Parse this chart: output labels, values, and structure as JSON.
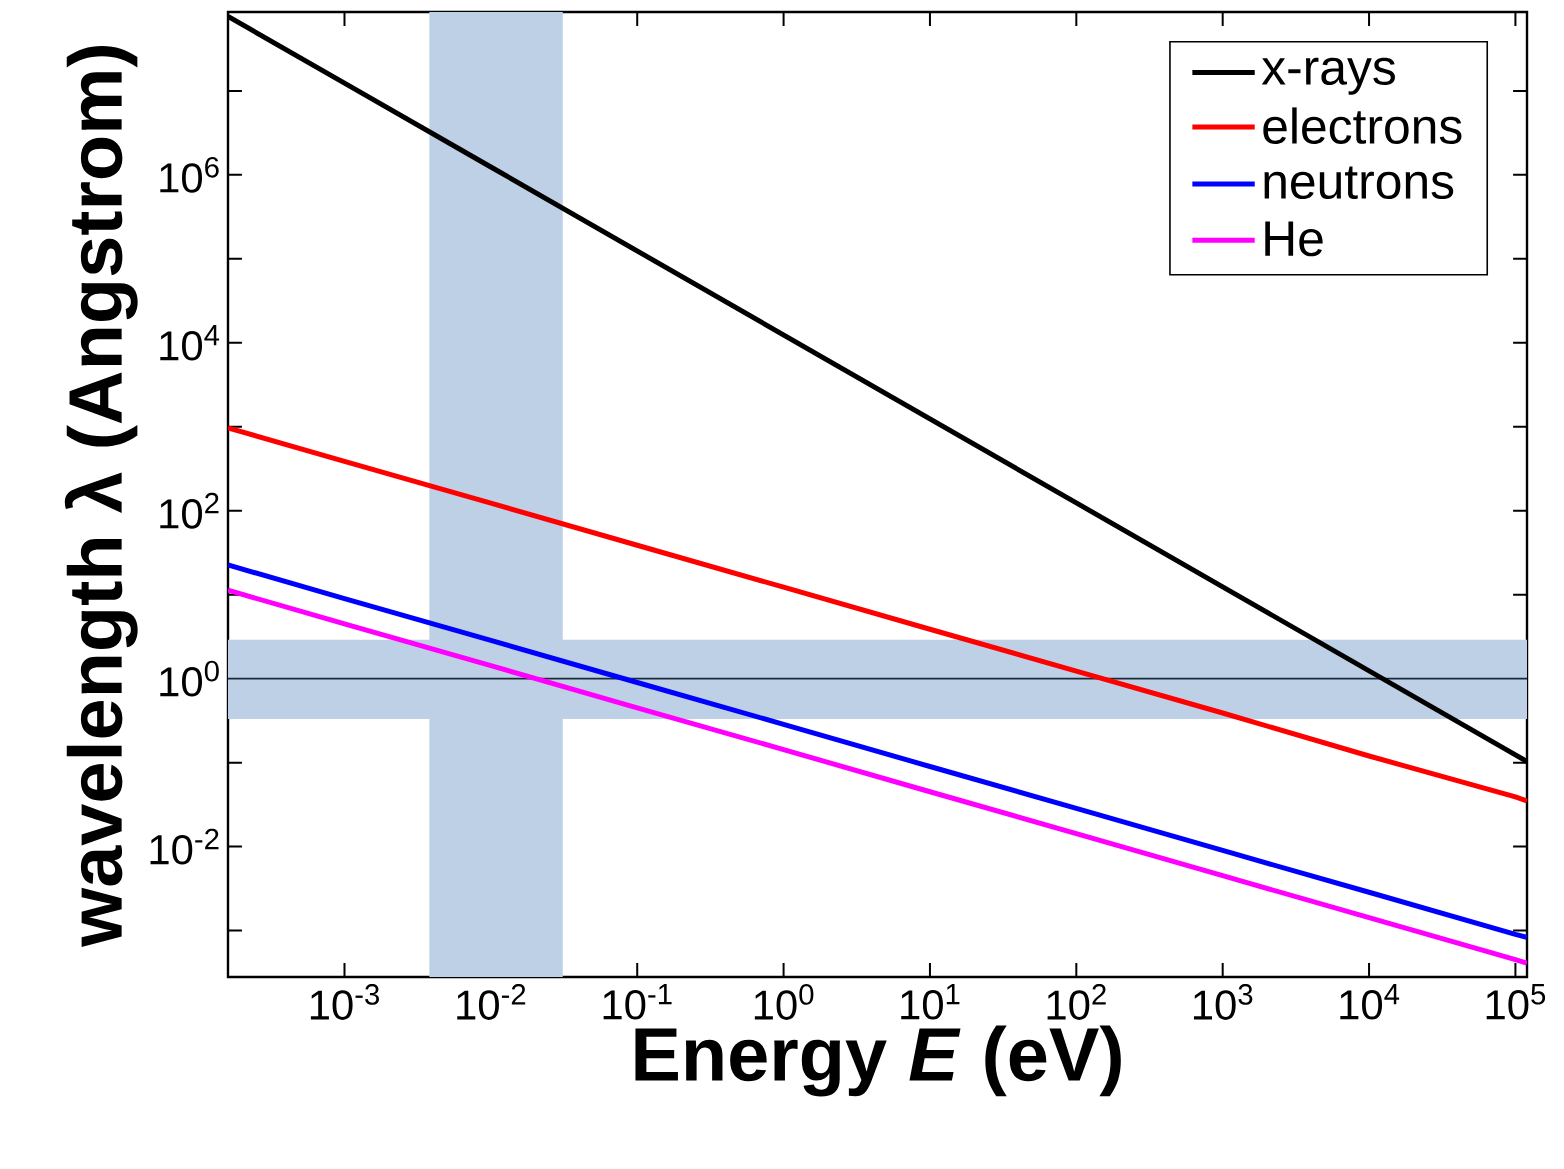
{
  "chart_data": {
    "type": "line",
    "xlabel": "Energy *E* (eV)",
    "ylabel": "wavelength λ (Angstrom)",
    "x": [
      0.00016,
      0.001,
      0.01,
      0.1,
      1,
      10,
      100,
      1000,
      10000,
      100000,
      120000
    ],
    "series": [
      {
        "name": "x-rays",
        "color": "#000000",
        "values": [
          77000000,
          12400000,
          1240000,
          124000,
          12400,
          1240,
          124,
          12.4,
          1.24,
          0.124,
          0.103
        ]
      },
      {
        "name": "electrons",
        "color": "#ff0000",
        "values": [
          970,
          388,
          123,
          38.8,
          12.3,
          3.88,
          1.23,
          0.39,
          0.12,
          0.039,
          0.035
        ]
      },
      {
        "name": "neutrons",
        "color": "#0000ff",
        "values": [
          22.6,
          9.0,
          2.86,
          0.9,
          0.286,
          0.09,
          0.0286,
          0.009,
          0.00286,
          0.0009,
          0.00083
        ]
      },
      {
        "name": "He",
        "color": "#ff00ff",
        "values": [
          11.3,
          4.5,
          1.43,
          0.45,
          0.143,
          0.045,
          0.0143,
          0.0045,
          0.00143,
          0.00045,
          0.00041
        ]
      }
    ],
    "log": "xy",
    "xlim": [
      0.00016,
      120000
    ],
    "ylim": [
      0.00028,
      87000000
    ],
    "xticks": [
      {
        "value": 0.001,
        "label": "10$^{-3}$"
      },
      {
        "value": 0.01,
        "label": "10$^{-2}$"
      },
      {
        "value": 0.1,
        "label": "10$^{-1}$"
      },
      {
        "value": 1,
        "label": "10$^{0}$"
      },
      {
        "value": 10,
        "label": "10$^{1}$"
      },
      {
        "value": 100,
        "label": "10$^{2}$"
      },
      {
        "value": 1000,
        "label": "10$^{3}$"
      },
      {
        "value": 10000,
        "label": "10$^{4}$"
      },
      {
        "value": 100000,
        "label": "10$^{5}$"
      }
    ],
    "yticks": [
      {
        "value": 0.001,
        "label": null
      },
      {
        "value": 0.01,
        "label": "10$^{-2}$"
      },
      {
        "value": 0.1,
        "label": null
      },
      {
        "value": 1,
        "label": "10$^{0}$"
      },
      {
        "value": 10,
        "label": null
      },
      {
        "value": 100,
        "label": "10$^{2}$"
      },
      {
        "value": 1000,
        "label": null
      },
      {
        "value": 10000,
        "label": "10$^{4}$"
      },
      {
        "value": 100000,
        "label": null
      },
      {
        "value": 1000000,
        "label": "10$^{6}$"
      },
      {
        "value": 10000000,
        "label": null
      }
    ],
    "bands": [
      {
        "axis": "x",
        "from": 0.0038,
        "to": 0.031,
        "color": "#bed0e6"
      },
      {
        "axis": "y",
        "from": 0.33,
        "to": 2.9,
        "color": "#bed0e6"
      }
    ],
    "ref_lines": [
      {
        "axis": "y",
        "value": 1,
        "color": "#1a2a3a"
      }
    ],
    "legend": "top right",
    "grid": false,
    "marker": "none",
    "line_style": "solid"
  }
}
